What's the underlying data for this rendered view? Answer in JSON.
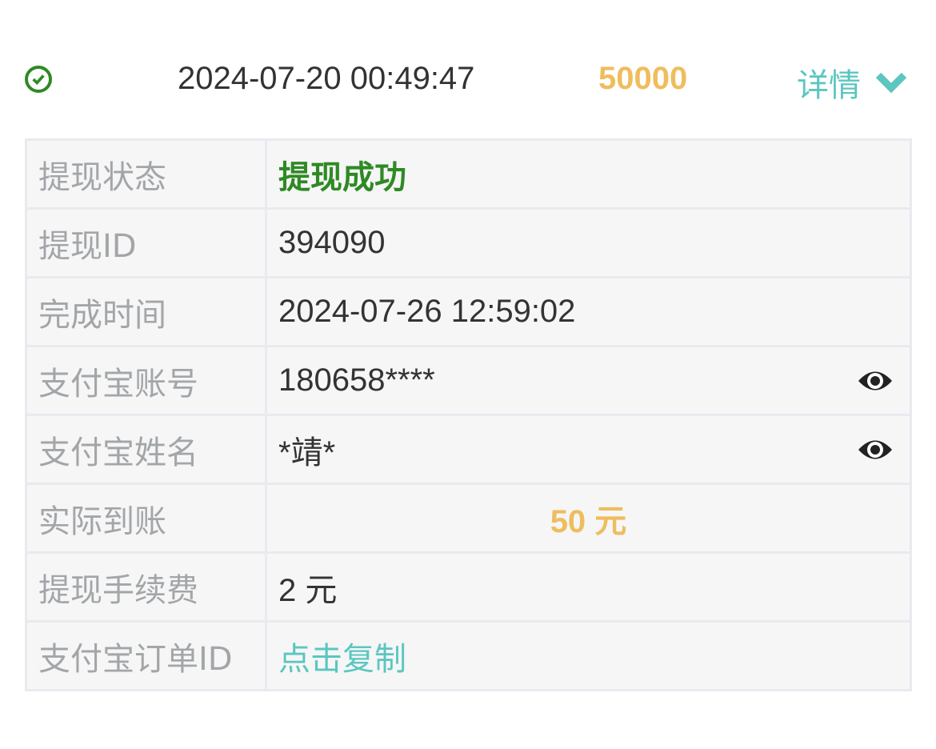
{
  "header": {
    "status_icon": "check-circle-icon",
    "time": "2024-07-20 00:49:47",
    "amount": "50000",
    "detail_label": "详情",
    "detail_icon": "chevron-down-icon"
  },
  "colors": {
    "success": "#2e8a23",
    "amount": "#efbd5d",
    "link": "#5cc6bf"
  },
  "rows": [
    {
      "label": "提现状态",
      "value": "提现成功"
    },
    {
      "label": "提现ID",
      "value": "394090"
    },
    {
      "label": "完成时间",
      "value": "2024-07-26 12:59:02"
    },
    {
      "label": "支付宝账号",
      "value": "180658****",
      "icon": "eye-icon"
    },
    {
      "label": "支付宝姓名",
      "value": "*靖*",
      "icon": "eye-icon"
    },
    {
      "label": "实际到账",
      "value": "50 元"
    },
    {
      "label": "提现手续费",
      "value": "2 元"
    },
    {
      "label": "支付宝订单ID",
      "value": "点击复制"
    }
  ]
}
